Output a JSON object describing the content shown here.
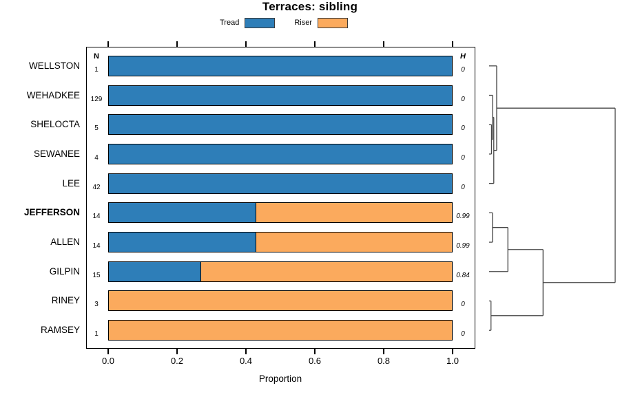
{
  "chart_data": {
    "type": "bar",
    "orientation": "horizontal",
    "stacked": true,
    "title": "Terraces: sibling",
    "xlabel": "Proportion",
    "xlim": [
      0,
      1
    ],
    "xticks": [
      "0.0",
      "0.2",
      "0.4",
      "0.6",
      "0.8",
      "1.0"
    ],
    "grid": false,
    "legend_position": "top",
    "legend": [
      {
        "label": "Tread",
        "color": "#2E7EB8"
      },
      {
        "label": "Riser",
        "color": "#FBAA5D"
      }
    ],
    "col_headers": {
      "n": "N",
      "h": "H"
    },
    "categories": [
      "WELLSTON",
      "WEHADKEE",
      "SHELOCTA",
      "SEWANEE",
      "LEE",
      "JEFFERSON",
      "ALLEN",
      "GILPIN",
      "RINEY",
      "RAMSEY"
    ],
    "rows": [
      {
        "name": "WELLSTON",
        "bold": false,
        "n": "1",
        "h": "0"
      },
      {
        "name": "WEHADKEE",
        "bold": false,
        "n": "129",
        "h": "0"
      },
      {
        "name": "SHELOCTA",
        "bold": false,
        "n": "5",
        "h": "0"
      },
      {
        "name": "SEWANEE",
        "bold": false,
        "n": "4",
        "h": "0"
      },
      {
        "name": "LEE",
        "bold": false,
        "n": "42",
        "h": "0"
      },
      {
        "name": "JEFFERSON",
        "bold": true,
        "n": "14",
        "h": "0.99"
      },
      {
        "name": "ALLEN",
        "bold": false,
        "n": "14",
        "h": "0.99"
      },
      {
        "name": "GILPIN",
        "bold": false,
        "n": "15",
        "h": "0.84"
      },
      {
        "name": "RINEY",
        "bold": false,
        "n": "3",
        "h": "0"
      },
      {
        "name": "RAMSEY",
        "bold": false,
        "n": "1",
        "h": "0"
      }
    ],
    "series": [
      {
        "name": "Tread",
        "values": [
          1,
          1,
          1,
          1,
          1,
          0.43,
          0.43,
          0.27,
          0,
          0
        ]
      },
      {
        "name": "Riser",
        "values": [
          0,
          0,
          0,
          0,
          0,
          0.57,
          0.57,
          0.73,
          1,
          1
        ]
      }
    ],
    "dendrogram": {
      "h": 1.0,
      "children": [
        {
          "h": 0.06,
          "children": [
            {
              "leaf": "WELLSTON"
            },
            {
              "h": 0.037,
              "children": [
                {
                  "h": 0.028,
                  "children": [
                    {
                      "leaf": "WEHADKEE"
                    },
                    {
                      "h": 0.019,
                      "children": [
                        {
                          "leaf": "SHELOCTA"
                        },
                        {
                          "leaf": "SEWANEE"
                        }
                      ]
                    }
                  ]
                },
                {
                  "leaf": "LEE"
                }
              ]
            }
          ]
        },
        {
          "h": 0.428,
          "children": [
            {
              "h": 0.149,
              "children": [
                {
                  "h": 0.027,
                  "children": [
                    {
                      "leaf": "JEFFERSON"
                    },
                    {
                      "leaf": "ALLEN"
                    }
                  ]
                },
                {
                  "leaf": "GILPIN"
                }
              ]
            },
            {
              "h": 0.015,
              "children": [
                {
                  "leaf": "RINEY"
                },
                {
                  "leaf": "RAMSEY"
                }
              ]
            }
          ]
        }
      ]
    },
    "colors": {
      "tread": "#2E7EB8",
      "riser": "#FBAA5D",
      "bar_border": "#000000",
      "dendro_line": "#454545"
    }
  }
}
